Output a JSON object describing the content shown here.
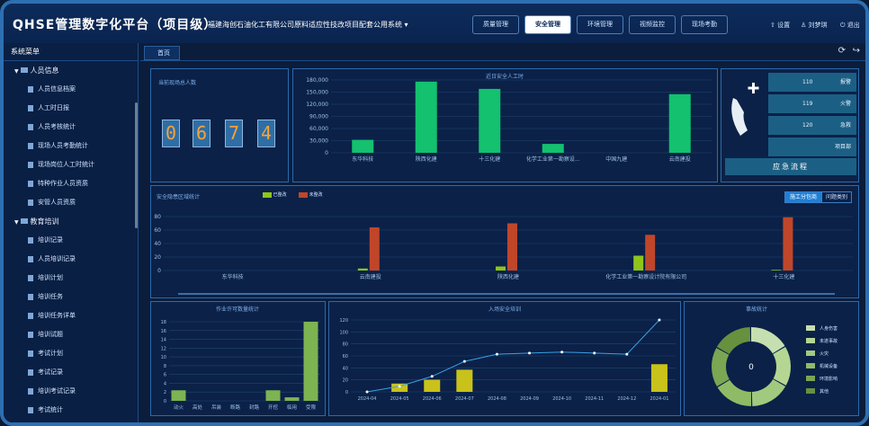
{
  "header": {
    "title": "QHSE管理数字化平台（项目级）",
    "project": "福建海创石油化工有限公司原料适应性技改项目配套公用系统",
    "nav": [
      "质量管理",
      "安全管理",
      "环境管理",
      "视频监控",
      "现场考勤"
    ],
    "active_nav": 1,
    "utils": [
      "设置",
      "刘梦琪",
      "退出"
    ]
  },
  "sidebar": {
    "title": "系统菜单",
    "groups": [
      {
        "label": "人员信息",
        "items": [
          "人员信息档案",
          "人工时日报",
          "人员考核统计",
          "现场人员考勤统计",
          "现场岗位人工时统计",
          "特种作业人员资质",
          "安管人员资质"
        ]
      },
      {
        "label": "教育培训",
        "items": [
          "培训记录",
          "人员培训记录",
          "培训计划",
          "培训任务",
          "培训任务详单",
          "培训试题",
          "考试计划",
          "考试记录",
          "培训考试记录",
          "考试统计"
        ]
      }
    ]
  },
  "tabs": {
    "home": "首页"
  },
  "onsite": {
    "title": "当前现场总人数",
    "digits": [
      "0",
      "6",
      "7",
      "4"
    ]
  },
  "manhours": {
    "title": "近日安全人工时",
    "chart_data": {
      "type": "bar",
      "categories": [
        "东华科技",
        "陕西化建",
        "十三化建",
        "化学工业第一勘察设...",
        "中国九建",
        "云南建投"
      ],
      "values": [
        32000,
        176000,
        158000,
        22000,
        0,
        145000
      ],
      "yticks": [
        "0",
        "30,000",
        "60,000",
        "90,000",
        "120,000",
        "150,000",
        "180,000"
      ],
      "ylim": [
        0,
        180000
      ],
      "color": "#13c16e"
    }
  },
  "emergency": {
    "rows": [
      {
        "num": "110",
        "label": "报警"
      },
      {
        "num": "119",
        "label": "火警"
      },
      {
        "num": "120",
        "label": "急救"
      },
      {
        "num": "",
        "label": "项目部"
      }
    ],
    "button": "应急流程"
  },
  "hazard": {
    "title": "安全隐患区域统计",
    "legend": [
      "已整改",
      "未整改"
    ],
    "toggles": [
      "施工分包商",
      "问题类别"
    ],
    "chart_data": {
      "type": "bar",
      "categories": [
        "东华科技",
        "云南建投",
        "陕西化建",
        "化学工业第一勘察设计院有限公司",
        "十三化建"
      ],
      "yticks": [
        "0",
        "20",
        "40",
        "60",
        "80"
      ],
      "ylim": [
        0,
        80
      ],
      "series": [
        {
          "name": "已整改",
          "values": [
            0,
            3,
            6,
            22,
            1
          ],
          "color": "#8fc41a"
        },
        {
          "name": "未整改",
          "values": [
            0,
            64,
            70,
            53,
            79
          ],
          "color": "#c0462a"
        }
      ]
    }
  },
  "jobs": {
    "title": "作业许可数量统计",
    "chart_data": {
      "type": "bar",
      "categories": [
        "动火",
        "高处",
        "吊装",
        "断路",
        "封路",
        "开挖",
        "临用",
        "受限"
      ],
      "values": [
        2.4,
        0,
        0,
        0,
        0,
        2.4,
        0.8,
        18
      ],
      "yticks": [
        "0",
        "2",
        "4",
        "6",
        "8",
        "10",
        "12",
        "14",
        "16",
        "18"
      ],
      "ylim": [
        0,
        18
      ],
      "color": "#7db351"
    }
  },
  "training": {
    "title": "入场安全培训",
    "chart_data": {
      "type": "bar+line",
      "categories": [
        "2024-04",
        "2024-05",
        "2024-06",
        "2024-07",
        "2024-08",
        "2024-09",
        "2024-10",
        "2024-11",
        "2024-12",
        "2024-01"
      ],
      "bar_values": [
        0,
        15,
        22,
        40,
        0,
        0,
        0,
        0,
        0,
        50
      ],
      "line_values": [
        0,
        10,
        28,
        55,
        68,
        70,
        72,
        70,
        68,
        130
      ],
      "yticks": [
        "0",
        "20",
        "40",
        "60",
        "80",
        "100",
        "120"
      ],
      "ylim": [
        0,
        130
      ]
    }
  },
  "accident": {
    "title": "事故统计",
    "center": "0",
    "legend": [
      "人身伤害",
      "未遂事故",
      "火灾",
      "机械设备",
      "环境影响",
      "其他"
    ],
    "colors": [
      "#c6dfb0",
      "#b5d693",
      "#a2ca7e",
      "#8fbb67",
      "#7ba652",
      "#67913f"
    ]
  }
}
